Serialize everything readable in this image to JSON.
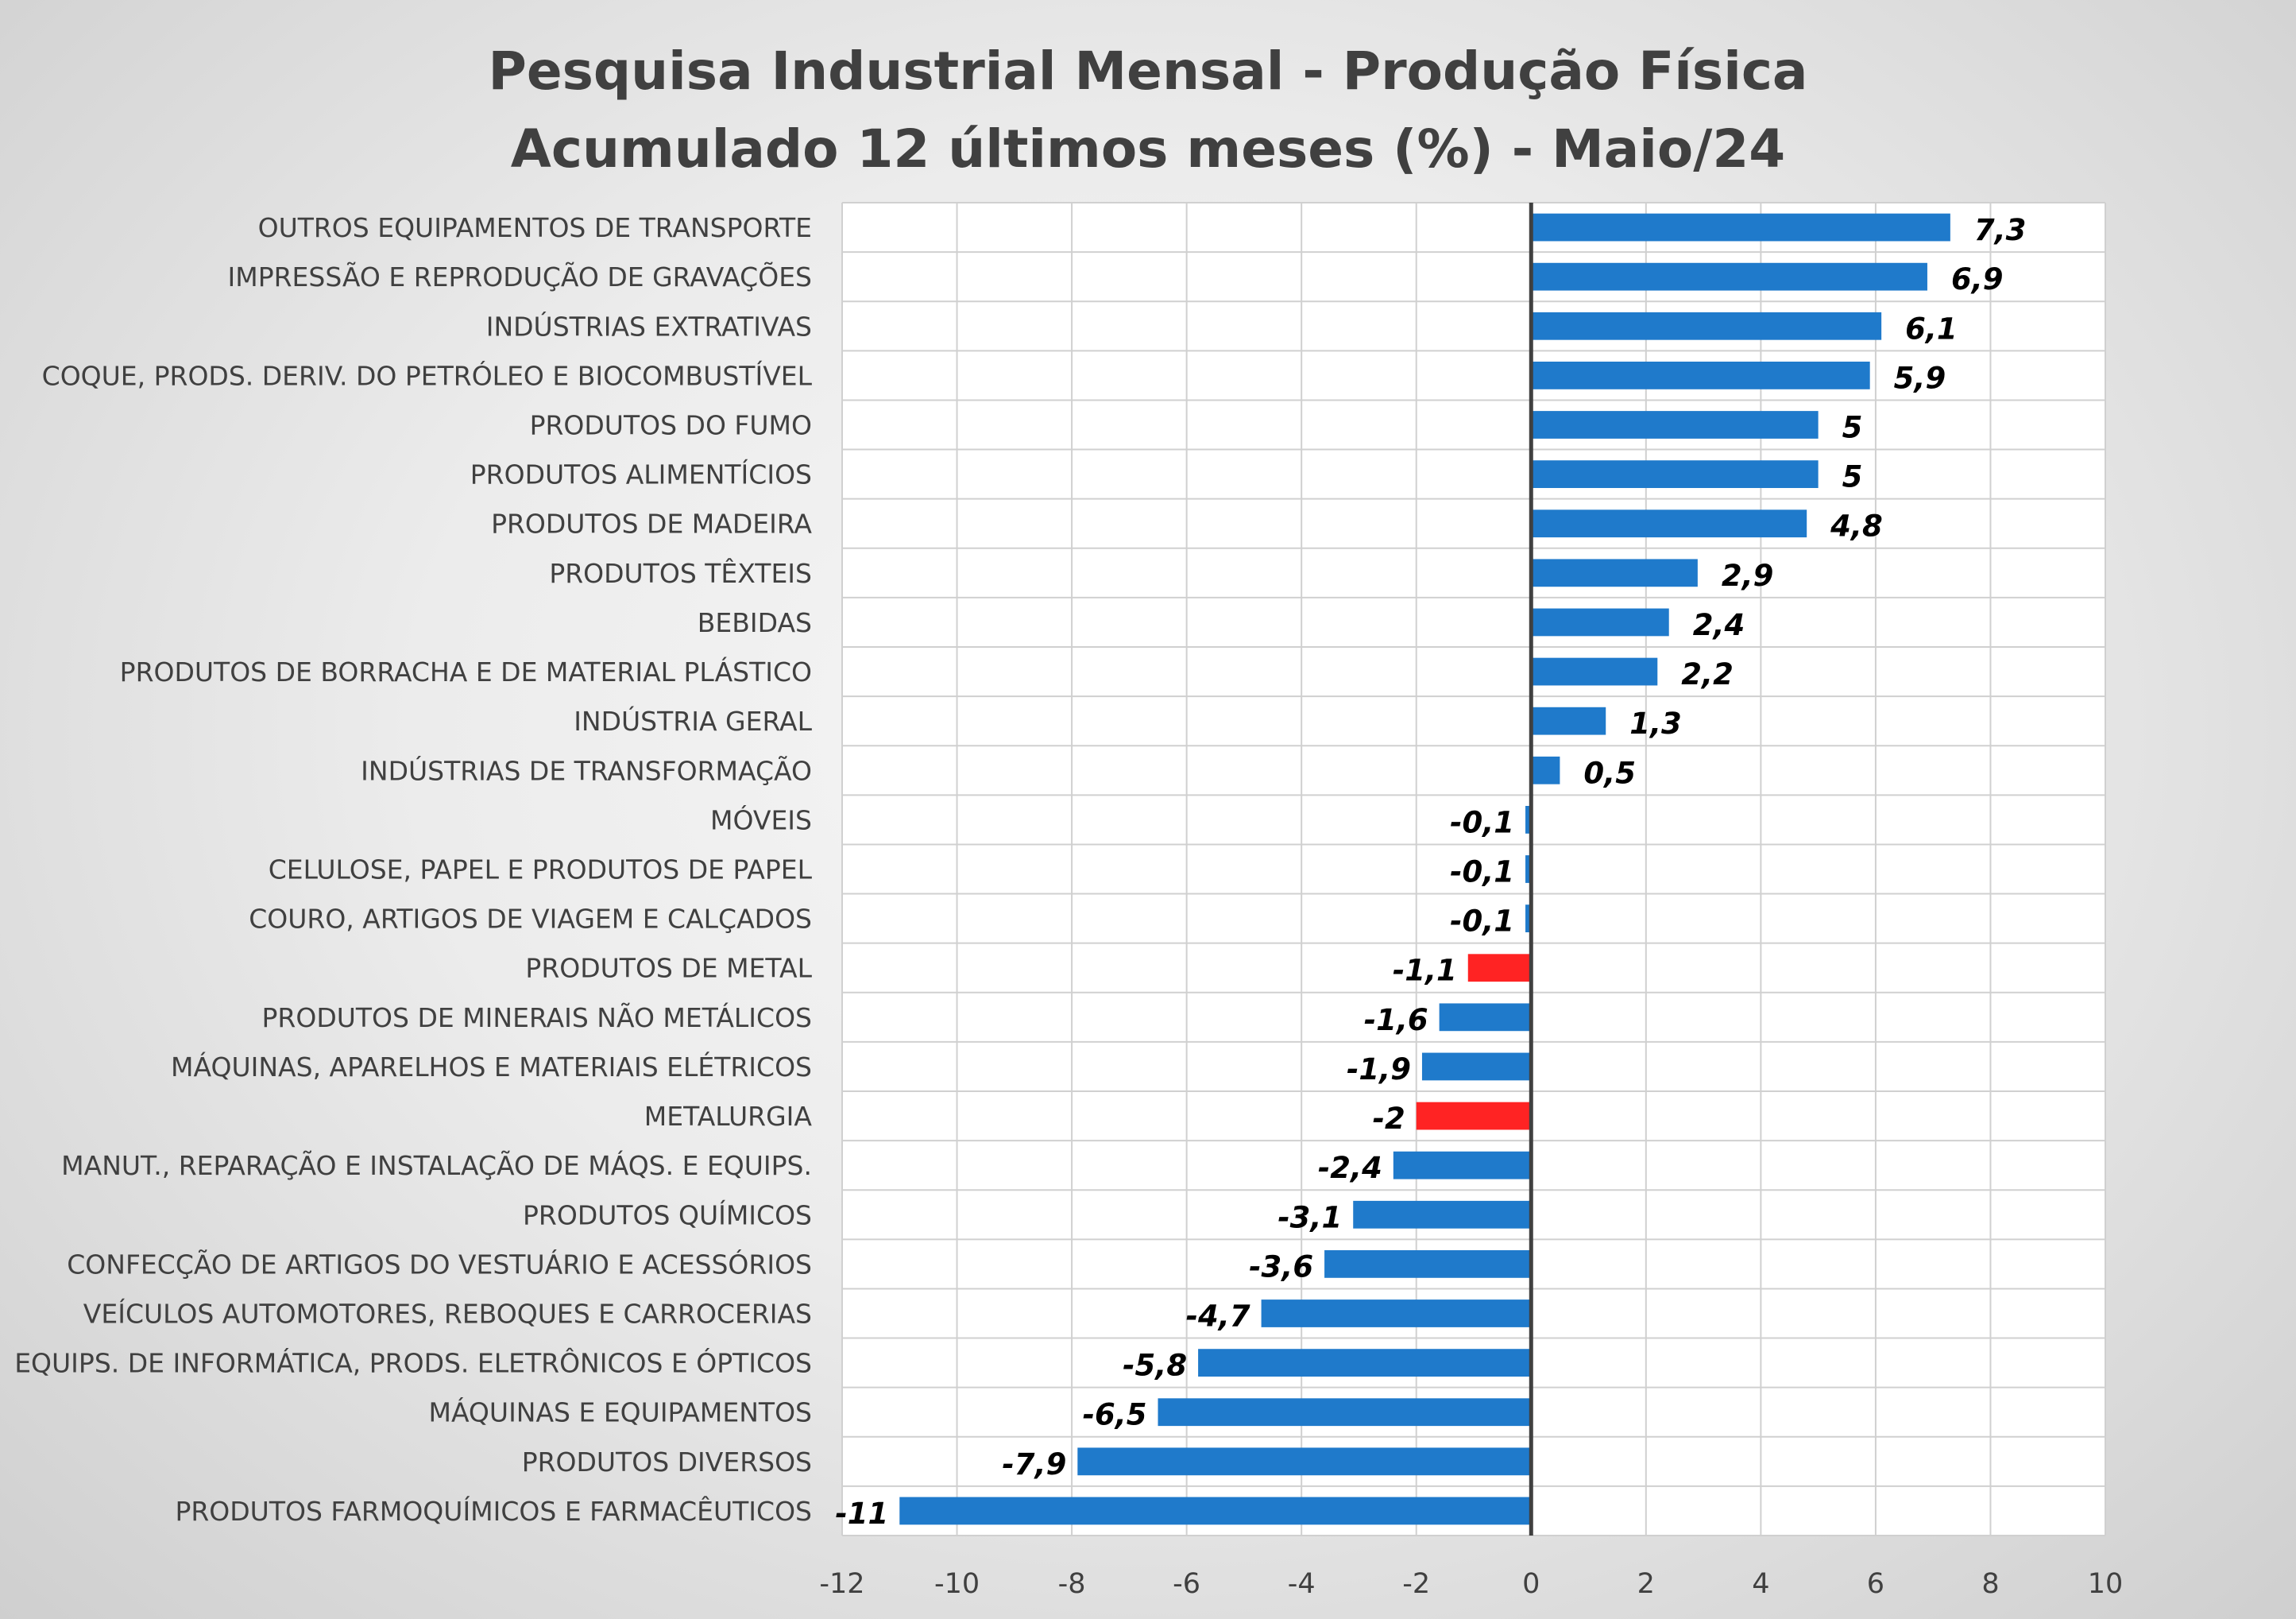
{
  "chart_data": {
    "type": "bar",
    "orientation": "horizontal",
    "title": [
      "Pesquisa Industrial Mensal - Produção Física",
      "Acumulado 12 últimos meses (%) - Maio/24"
    ],
    "xlim": [
      -12,
      10
    ],
    "xticks": [
      -12,
      -10,
      -8,
      -6,
      -4,
      -2,
      0,
      2,
      4,
      6,
      8,
      10
    ],
    "grid": true,
    "colors": {
      "default": "#1f7acb",
      "highlight": "#ff2323"
    },
    "highlighted": [
      "PRODUTOS DE METAL",
      "METALURGIA"
    ],
    "categories": [
      "OUTROS EQUIPAMENTOS DE TRANSPORTE",
      "IMPRESSÃO E REPRODUÇÃO DE GRAVAÇÕES",
      "INDÚSTRIAS EXTRATIVAS",
      "COQUE, PRODS. DERIV. DO PETRÓLEO E BIOCOMBUSTÍVEL",
      "PRODUTOS DO FUMO",
      "PRODUTOS ALIMENTÍCIOS",
      "PRODUTOS DE MADEIRA",
      "PRODUTOS TÊXTEIS",
      "BEBIDAS",
      "PRODUTOS DE BORRACHA E DE MATERIAL PLÁSTICO",
      "INDÚSTRIA GERAL",
      "INDÚSTRIAS DE TRANSFORMAÇÃO",
      "MÓVEIS",
      "CELULOSE, PAPEL E PRODUTOS DE PAPEL",
      "COURO, ARTIGOS DE VIAGEM E CALÇADOS",
      "PRODUTOS DE METAL",
      "PRODUTOS DE MINERAIS NÃO METÁLICOS",
      "MÁQUINAS, APARELHOS E MATERIAIS ELÉTRICOS",
      "METALURGIA",
      "MANUT., REPARAÇÃO E INSTALAÇÃO DE MÁQS. E EQUIPS.",
      "PRODUTOS QUÍMICOS",
      "CONFECÇÃO DE ARTIGOS DO VESTUÁRIO E ACESSÓRIOS",
      "VEÍCULOS AUTOMOTORES, REBOQUES E CARROCERIAS",
      "EQUIPS. DE INFORMÁTICA, PRODS. ELETRÔNICOS E ÓPTICOS",
      "MÁQUINAS E EQUIPAMENTOS",
      "PRODUTOS DIVERSOS",
      "PRODUTOS FARMOQUÍMICOS E FARMACÊUTICOS"
    ],
    "values": [
      7.3,
      6.9,
      6.1,
      5.9,
      5,
      5,
      4.8,
      2.9,
      2.4,
      2.2,
      1.3,
      0.5,
      -0.1,
      -0.1,
      -0.1,
      -1.1,
      -1.6,
      -1.9,
      -2,
      -2.4,
      -3.1,
      -3.6,
      -4.7,
      -5.8,
      -6.5,
      -7.9,
      -11
    ],
    "value_labels": [
      "7,3",
      "6,9",
      "6,1",
      "5,9",
      "5",
      "5",
      "4,8",
      "2,9",
      "2,4",
      "2,2",
      "1,3",
      "0,5",
      "-0,1",
      "-0,1",
      "-0,1",
      "-1,1",
      "-1,6",
      "-1,9",
      "-2",
      "-2,4",
      "-3,1",
      "-3,6",
      "-4,7",
      "-5,8",
      "-6,5",
      "-7,9",
      "-11"
    ]
  }
}
